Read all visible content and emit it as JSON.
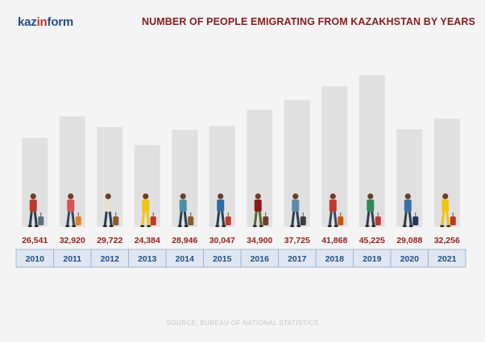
{
  "logo": {
    "part1": "kaz",
    "part2": "in",
    "part3": "form"
  },
  "title": "NUMBER OF PEOPLE EMIGRATING FROM KAZAKHSTAN BY YEARS",
  "source": "SOURCE: BUREAU OF NATIONAL STATISTICS",
  "chart_data": {
    "type": "bar",
    "title": "NUMBER OF PEOPLE EMIGRATING FROM KAZAKHSTAN BY YEARS",
    "categories": [
      "2010",
      "2011",
      "2012",
      "2013",
      "2014",
      "2015",
      "2016",
      "2017",
      "2018",
      "2019",
      "2020",
      "2021"
    ],
    "values": [
      26541,
      32920,
      29722,
      24384,
      28946,
      30047,
      34900,
      37725,
      41868,
      45225,
      29088,
      32256
    ],
    "value_labels": [
      "26,541",
      "32,920",
      "29,722",
      "24,384",
      "28,946",
      "30,047",
      "34,900",
      "37,725",
      "41,868",
      "45,225",
      "29,088",
      "32,256"
    ],
    "xlabel": "",
    "ylabel": "",
    "grid": false,
    "colors": {
      "bar": "#e0e0e0",
      "value": "#9e1b1b",
      "year": "#1f4e8c",
      "year_box": "#dfe7f2",
      "year_border": "#8fa9c8"
    },
    "figures": [
      {
        "shirt": "#c0392b",
        "pants": "#2c3e50",
        "bag": "#5d6d7e"
      },
      {
        "shirt": "#d9534f",
        "pants": "#34495e",
        "bag": "#e67e22"
      },
      {
        "shirt": "#e8e0d0",
        "pants": "#2c3e50",
        "bag": "#8b5a2b"
      },
      {
        "shirt": "#f1c40f",
        "pants": "#f1c40f",
        "bag": "#c0392b"
      },
      {
        "shirt": "#4a90a4",
        "pants": "#2c3e50",
        "bag": "#8b5a2b"
      },
      {
        "shirt": "#2e6da4",
        "pants": "#2c3e50",
        "bag": "#c0392b"
      },
      {
        "shirt": "#8b1a1a",
        "pants": "#556b2f",
        "bag": "#6b4226"
      },
      {
        "shirt": "#5d8aa8",
        "pants": "#2c3e50",
        "bag": "#3d3d3d"
      },
      {
        "shirt": "#c0392b",
        "pants": "#34495e",
        "bag": "#d35400"
      },
      {
        "shirt": "#2e8b57",
        "pants": "#2c3e50",
        "bag": "#c0392b"
      },
      {
        "shirt": "#3b6ea5",
        "pants": "#2c3e50",
        "bag": "#1f3a5f"
      },
      {
        "shirt": "#f1c40f",
        "pants": "#f1c40f",
        "bag": "#c0392b"
      }
    ]
  }
}
